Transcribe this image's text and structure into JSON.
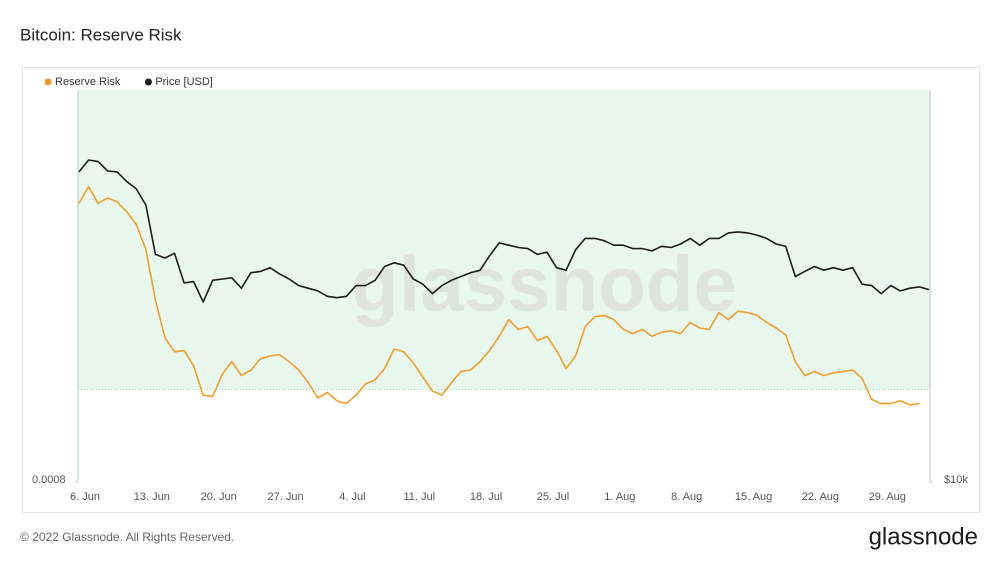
{
  "chart_data": {
    "type": "line",
    "title": "Bitcoin: Reserve Risk",
    "watermark": "glassnode",
    "categories": [
      "6. Jun",
      null,
      null,
      null,
      null,
      null,
      null,
      "13. Jun",
      null,
      null,
      null,
      null,
      null,
      null,
      "20. Jun",
      null,
      null,
      null,
      null,
      null,
      null,
      "27. Jun",
      null,
      null,
      null,
      null,
      null,
      null,
      "4. Jul",
      null,
      null,
      null,
      null,
      null,
      null,
      "11. Jul",
      null,
      null,
      null,
      null,
      null,
      null,
      "18. Jul",
      null,
      null,
      null,
      null,
      null,
      null,
      "25. Jul",
      null,
      null,
      null,
      null,
      null,
      null,
      "1. Aug",
      null,
      null,
      null,
      null,
      null,
      null,
      "8. Aug",
      null,
      null,
      null,
      null,
      null,
      null,
      "15. Aug",
      null,
      null,
      null,
      null,
      null,
      null,
      "22. Aug",
      null,
      null,
      null,
      null,
      null,
      null,
      "29. Aug",
      null,
      null,
      null,
      null,
      null
    ],
    "series": [
      {
        "name": "Reserve Risk",
        "color": "#f39c2a",
        "values": [
          0.00279,
          0.00291,
          0.00279,
          0.00283,
          0.0028,
          0.00273,
          0.00264,
          0.00246,
          0.0021,
          0.00183,
          0.00173,
          0.00174,
          0.00163,
          0.00142,
          0.00141,
          0.00157,
          0.00166,
          0.00156,
          0.0016,
          0.00168,
          0.0017,
          0.00171,
          0.00166,
          0.0016,
          0.00151,
          0.0014,
          0.00144,
          0.00138,
          0.00136,
          0.00142,
          0.0015,
          0.00153,
          0.00161,
          0.00175,
          0.00173,
          0.00165,
          0.00155,
          0.00145,
          0.00142,
          0.00151,
          0.00159,
          0.0016,
          0.00166,
          0.00174,
          0.00184,
          0.00196,
          0.00189,
          0.00191,
          0.00181,
          0.00184,
          0.00174,
          0.00161,
          0.0017,
          0.00191,
          0.00198,
          0.00199,
          0.00196,
          0.00189,
          0.00186,
          0.00189,
          0.00184,
          0.00187,
          0.00188,
          0.00186,
          0.00194,
          0.0019,
          0.00189,
          0.00201,
          0.00196,
          0.00202,
          0.00201,
          0.00199,
          0.00194,
          0.0019,
          0.00185,
          0.00166,
          0.00156,
          0.00159,
          0.00156,
          0.00158,
          0.00159,
          0.0016,
          0.00154,
          0.00139,
          0.00136,
          0.00136,
          0.00138,
          0.00135,
          0.00136,
          null
        ]
      },
      {
        "name": "Price [USD]",
        "color": "#1c1c1c",
        "axis": "y2",
        "values": [
          31300,
          32700,
          32500,
          31400,
          31300,
          30200,
          29400,
          27700,
          23100,
          22800,
          23200,
          20800,
          20900,
          19400,
          21000,
          21100,
          21200,
          20400,
          21600,
          21700,
          22000,
          21500,
          21100,
          20600,
          20400,
          20200,
          19800,
          19700,
          19800,
          20600,
          20600,
          21000,
          22100,
          22400,
          22200,
          21100,
          20700,
          20000,
          20600,
          21000,
          21300,
          21600,
          21800,
          23000,
          24100,
          23900,
          23700,
          23600,
          23100,
          23300,
          22000,
          21800,
          23500,
          24500,
          24500,
          24300,
          23900,
          23900,
          23600,
          23600,
          23400,
          23800,
          23700,
          24000,
          24500,
          23900,
          24500,
          24500,
          25000,
          25100,
          25000,
          24800,
          24500,
          24000,
          23800,
          21300,
          21700,
          22100,
          21800,
          22000,
          21800,
          22000,
          20700,
          20600,
          20000,
          20600,
          20200,
          20400,
          20500,
          20300
        ]
      }
    ],
    "ylim": [
      0.0008,
      0.0036
    ],
    "yticks": [
      0.0008
    ],
    "y2lim": [
      10000,
      42300
    ],
    "y2ticks": [
      {
        "value": 10000,
        "label": "$10k"
      }
    ],
    "log_y2": true,
    "band": {
      "from": 0.00146,
      "color": "#e8f8ef"
    },
    "legend": "top-left"
  },
  "footer": {
    "copyright": "© 2022 Glassnode. All Rights Reserved.",
    "logo": "glassnode"
  }
}
